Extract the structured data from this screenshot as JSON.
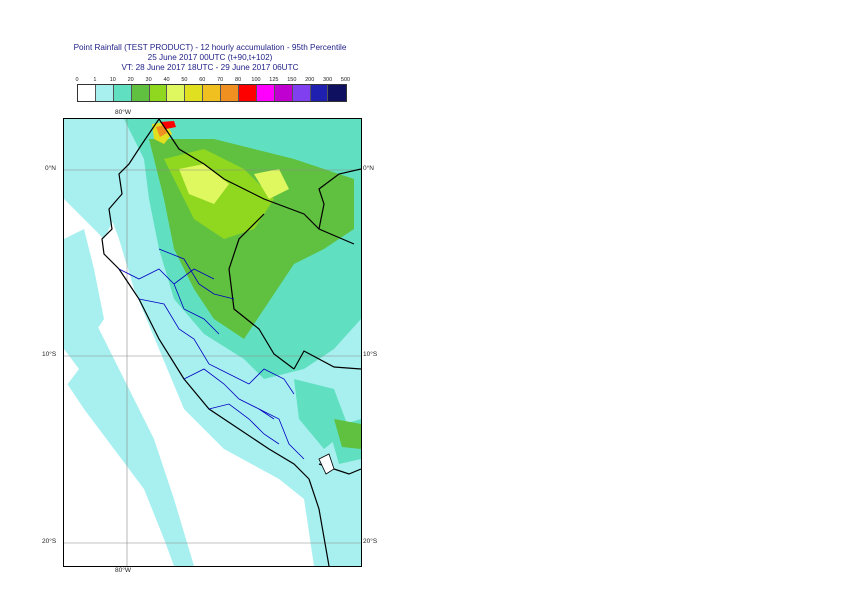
{
  "title": {
    "line1": "Point Rainfall (TEST PRODUCT) - 12 hourly accumulation - 95th Percentile",
    "line2": "25 June 2017 00UTC (t+90,t+102)",
    "line3": "VT: 28 June 2017 18UTC - 29 June 2017 06UTC"
  },
  "legend": {
    "ticks": [
      "0",
      "1",
      "10",
      "20",
      "30",
      "40",
      "50",
      "60",
      "70",
      "80",
      "100",
      "125",
      "150",
      "200",
      "300",
      "500"
    ],
    "colors": [
      "#ffffff",
      "#a8f0f0",
      "#60e0c0",
      "#60c040",
      "#90d820",
      "#e0f860",
      "#e0e020",
      "#f0c020",
      "#f09020",
      "#ff0000",
      "#ff00ff",
      "#c000d0",
      "#8040f0",
      "#2020b0",
      "#101060"
    ]
  },
  "axes": {
    "lat_top": "0°N",
    "lat_mid": "10°S",
    "lat_bottom": "20°S",
    "lon_top": "80°W",
    "lon_bottom": "80°W"
  }
}
